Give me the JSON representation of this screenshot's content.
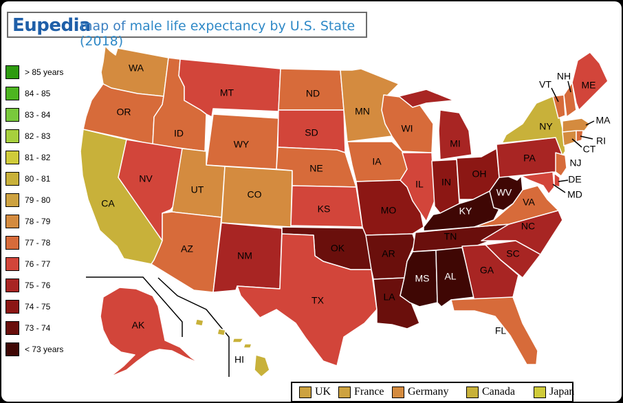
{
  "title": {
    "brand": "Eupedia",
    "prefix": "map of",
    "text": "male life expectancy by U.S. State (2018)"
  },
  "colors": {
    "85plus": "#2e9b10",
    "84_85": "#4db521",
    "83_84": "#79c93c",
    "82_83": "#a7cf3d",
    "81_82": "#cfcb3a",
    "80_81": "#c8b13a",
    "79_80": "#cda240",
    "78_79": "#d48b3f",
    "77_78": "#d76b3a",
    "76_77": "#d2453a",
    "75_76": "#a82523",
    "74_75": "#8c1714",
    "73_74": "#6a0f0c",
    "lt73": "#3f0704"
  },
  "legend": [
    {
      "label": "> 85 years",
      "color": "#2e9b10"
    },
    {
      "label": "84 - 85",
      "color": "#4db521"
    },
    {
      "label": "83 - 84",
      "color": "#79c93c"
    },
    {
      "label": "82 - 83",
      "color": "#a7cf3d"
    },
    {
      "label": "81 - 82",
      "color": "#cfcb3a"
    },
    {
      "label": "80 - 81",
      "color": "#c8b13a"
    },
    {
      "label": "79 - 80",
      "color": "#cda240"
    },
    {
      "label": "78 - 79",
      "color": "#d48b3f"
    },
    {
      "label": "77 - 78",
      "color": "#d76b3a"
    },
    {
      "label": "76 - 77",
      "color": "#d2453a"
    },
    {
      "label": "75 - 76",
      "color": "#a82523"
    },
    {
      "label": "74 - 75",
      "color": "#8c1714"
    },
    {
      "label": "73 - 74",
      "color": "#6a0f0c"
    },
    {
      "label": "< 73 years",
      "color": "#3f0704"
    }
  ],
  "comparison": [
    {
      "label": "UK",
      "color": "#cda240"
    },
    {
      "label": "France",
      "color": "#cda240"
    },
    {
      "label": "Germany",
      "color": "#d48b3f"
    },
    {
      "label": "Canada",
      "color": "#c8b13a"
    },
    {
      "label": "Japan",
      "color": "#cfcb3a"
    }
  ],
  "states": {
    "WA": "#d48b3f",
    "OR": "#d76b3a",
    "CA": "#c8b13a",
    "ID": "#d76b3a",
    "NV": "#d2453a",
    "MT": "#d2453a",
    "WY": "#d76b3a",
    "UT": "#d48b3f",
    "CO": "#d48b3f",
    "AZ": "#d76b3a",
    "NM": "#a82523",
    "ND": "#d76b3a",
    "SD": "#d2453a",
    "NE": "#d76b3a",
    "KS": "#d2453a",
    "OK": "#6a0f0c",
    "TX": "#d2453a",
    "MN": "#d48b3f",
    "IA": "#d76b3a",
    "MO": "#8c1714",
    "AR": "#6a0f0c",
    "LA": "#6a0f0c",
    "WI": "#d76b3a",
    "IL": "#d2453a",
    "MI": "#a82523",
    "IN": "#8c1714",
    "OH": "#8c1714",
    "KY": "#3f0704",
    "TN": "#6a0f0c",
    "MS": "#3f0704",
    "AL": "#3f0704",
    "GA": "#a82523",
    "FL": "#d76b3a",
    "SC": "#a82523",
    "NC": "#a82523",
    "VA": "#d76b3a",
    "WV": "#3f0704",
    "PA": "#a82523",
    "NY": "#c8b13a",
    "VT": "#d76b3a",
    "NH": "#d76b3a",
    "ME": "#d2453a",
    "MA": "#d48b3f",
    "CT": "#d48b3f",
    "RI": "#d76b3a",
    "NJ": "#d76b3a",
    "DE": "#d2453a",
    "MD": "#d2453a",
    "AK": "#d2453a",
    "HI": "#c8b13a"
  },
  "labels": {
    "WA": "WA",
    "OR": "OR",
    "CA": "CA",
    "ID": "ID",
    "NV": "NV",
    "MT": "MT",
    "WY": "WY",
    "UT": "UT",
    "CO": "CO",
    "AZ": "AZ",
    "NM": "NM",
    "ND": "ND",
    "SD": "SD",
    "NE": "NE",
    "KS": "KS",
    "OK": "OK",
    "TX": "TX",
    "MN": "MN",
    "IA": "IA",
    "MO": "MO",
    "AR": "AR",
    "LA": "LA",
    "WI": "WI",
    "IL": "IL",
    "MI": "MI",
    "IN": "IN",
    "OH": "OH",
    "KY": "KY",
    "TN": "TN",
    "MS": "MS",
    "AL": "AL",
    "GA": "GA",
    "FL": "FL",
    "SC": "SC",
    "NC": "NC",
    "VA": "VA",
    "WV": "WV",
    "PA": "PA",
    "NY": "NY",
    "VT": "VT",
    "NH": "NH",
    "ME": "ME",
    "MA": "MA",
    "CT": "CT",
    "RI": "RI",
    "NJ": "NJ",
    "DE": "DE",
    "MD": "MD",
    "AK": "AK",
    "HI": "HI"
  }
}
